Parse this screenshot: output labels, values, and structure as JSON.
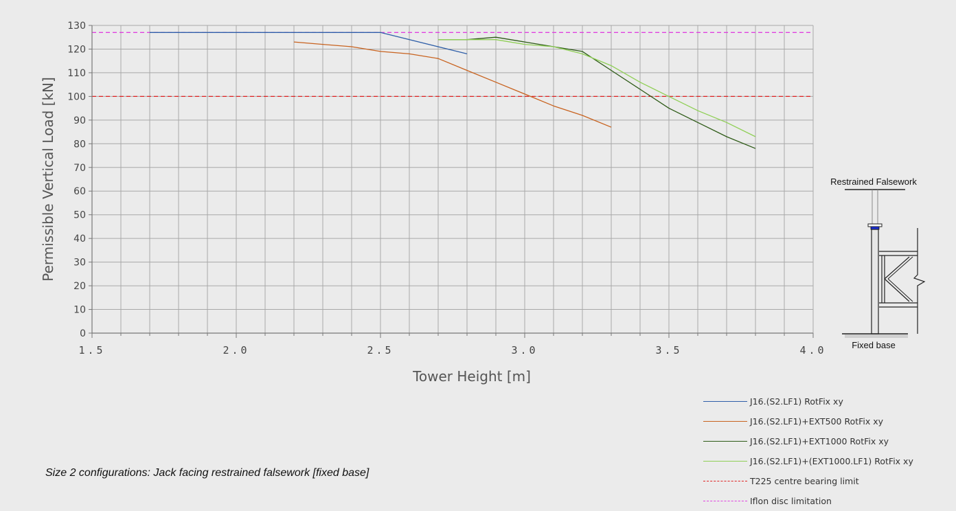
{
  "chart_data": {
    "type": "line",
    "ylabel": "Permissible Vertical Load [kN]",
    "xlabel": "Tower Height [m]",
    "xlim": [
      1.5,
      4.0
    ],
    "ylim": [
      0,
      130
    ],
    "x_major_ticks": [
      1.5,
      2.0,
      2.5,
      3.0,
      3.5,
      4.0
    ],
    "x_tick_labels": [
      "1.5",
      "2.0",
      "2.5",
      "3.0",
      "3.5",
      "4.0"
    ],
    "x_minor_step": 0.1,
    "y_ticks": [
      0,
      10,
      20,
      30,
      40,
      50,
      60,
      70,
      80,
      90,
      100,
      110,
      120,
      130
    ],
    "y_tick_labels": [
      "0",
      "10",
      "20",
      "30",
      "40",
      "50",
      "60",
      "70",
      "80",
      "90",
      "100",
      "110",
      "120",
      "130"
    ],
    "grid": true,
    "legend_position": "bottom-right",
    "series": [
      {
        "name": "J16.(S2.LF1) RotFix xy",
        "color": "#2e5ea8",
        "dashed": false,
        "x": [
          1.7,
          2.5,
          2.8
        ],
        "y": [
          127,
          127,
          118
        ]
      },
      {
        "name": "J16.(S2.LF1)+EXT500 RotFix xy",
        "color": "#c8621e",
        "dashed": false,
        "x": [
          2.2,
          2.3,
          2.4,
          2.5,
          2.6,
          2.7,
          2.8,
          2.9,
          3.0,
          3.1,
          3.2,
          3.3
        ],
        "y": [
          123,
          122,
          121,
          119,
          118,
          116,
          111,
          106,
          101,
          96,
          92,
          87
        ]
      },
      {
        "name": "J16.(S2.LF1)+EXT1000 RotFix xy",
        "color": "#2d5a16",
        "dashed": false,
        "x": [
          2.7,
          2.8,
          2.9,
          3.0,
          3.1,
          3.2,
          3.3,
          3.4,
          3.5,
          3.6,
          3.7,
          3.8
        ],
        "y": [
          124,
          124,
          125,
          123,
          121,
          119,
          111,
          103,
          95,
          89,
          83,
          78
        ]
      },
      {
        "name": "J16.(S2.LF1)+(EXT1000.LF1) RotFix xy",
        "color": "#8fcf55",
        "dashed": false,
        "x": [
          2.7,
          2.8,
          2.9,
          3.0,
          3.1,
          3.2,
          3.3,
          3.4,
          3.5,
          3.6,
          3.7,
          3.8
        ],
        "y": [
          124,
          124,
          124,
          122,
          121,
          118,
          113,
          106,
          100,
          94,
          89,
          83
        ]
      },
      {
        "name": "T225 centre bearing limit",
        "color": "#e02020",
        "dashed": true,
        "x": [
          1.5,
          4.0
        ],
        "y": [
          100,
          100
        ]
      },
      {
        "name": "Iflon disc limitation",
        "color": "#e040e0",
        "dashed": true,
        "x": [
          1.5,
          4.0
        ],
        "y": [
          127,
          127
        ]
      }
    ]
  },
  "diagram": {
    "top_label": "Restrained Falsework",
    "bottom_label": "Fixed base"
  },
  "caption": "Size 2 configurations: Jack facing restrained falsework [fixed base]"
}
